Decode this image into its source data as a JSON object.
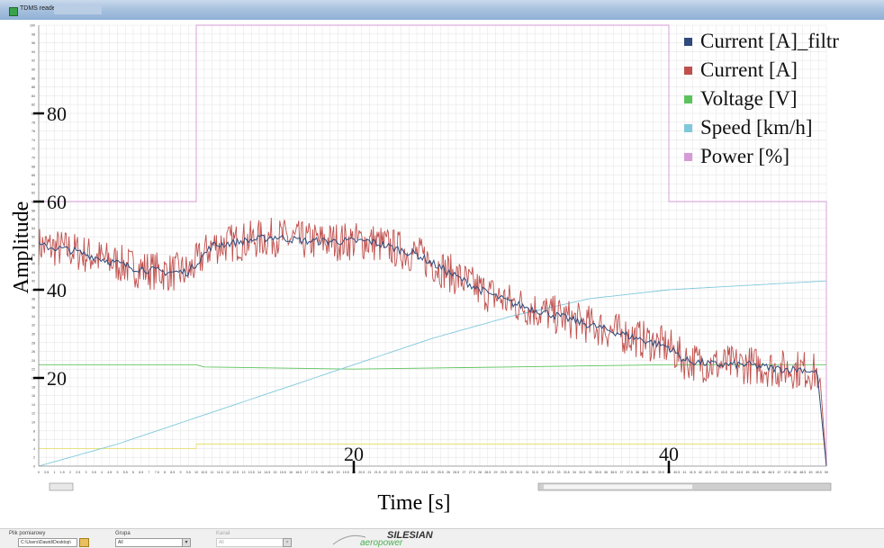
{
  "window": {
    "title": "TDMS reader"
  },
  "colors": {
    "current_filtr": "#2f4b7c",
    "current": "#c0504d",
    "voltage": "#5cc35c",
    "speed": "#7fc8dc",
    "power": "#d69ad6",
    "yellow": "#e8e070",
    "grid": "#e6e6e6"
  },
  "chart_data": {
    "type": "line",
    "xlabel": "Time [s]",
    "ylabel": "Amplitude",
    "xlim": [
      0,
      50
    ],
    "ylim": [
      0,
      100
    ],
    "x_major_ticks": [
      "20",
      "40"
    ],
    "y_major_ticks": [
      "20",
      "40",
      "60",
      "80"
    ],
    "grid": true,
    "legend_position": "top-right",
    "series": [
      {
        "name": "Current [A]_filtr",
        "key": "current_filtr",
        "points": [
          [
            0,
            50
          ],
          [
            2,
            49
          ],
          [
            4,
            47
          ],
          [
            6,
            45
          ],
          [
            8,
            44
          ],
          [
            9.5,
            44
          ],
          [
            10,
            46
          ],
          [
            11,
            50
          ],
          [
            13,
            51
          ],
          [
            15,
            52
          ],
          [
            17,
            51
          ],
          [
            19,
            51
          ],
          [
            21,
            51
          ],
          [
            22,
            50
          ],
          [
            24,
            48
          ],
          [
            26,
            44
          ],
          [
            28,
            40
          ],
          [
            30,
            37
          ],
          [
            32,
            35
          ],
          [
            34,
            33
          ],
          [
            36,
            31
          ],
          [
            38,
            29
          ],
          [
            40,
            27
          ],
          [
            41,
            24
          ],
          [
            43,
            23
          ],
          [
            45,
            23
          ],
          [
            47,
            22
          ],
          [
            48.5,
            22
          ],
          [
            49.5,
            21
          ],
          [
            50,
            0
          ]
        ]
      },
      {
        "name": "Current [A]",
        "key": "current",
        "points": [
          [
            0,
            50
          ],
          [
            2,
            49
          ],
          [
            4,
            47
          ],
          [
            6,
            45
          ],
          [
            8,
            44
          ],
          [
            9.5,
            44
          ],
          [
            10,
            46
          ],
          [
            11,
            50
          ],
          [
            13,
            51
          ],
          [
            15,
            52
          ],
          [
            17,
            51
          ],
          [
            19,
            51
          ],
          [
            21,
            51
          ],
          [
            22,
            50
          ],
          [
            24,
            48
          ],
          [
            26,
            44
          ],
          [
            28,
            40
          ],
          [
            30,
            37
          ],
          [
            32,
            35
          ],
          [
            34,
            33
          ],
          [
            36,
            31
          ],
          [
            38,
            29
          ],
          [
            40,
            27
          ],
          [
            41,
            24
          ],
          [
            43,
            23
          ],
          [
            45,
            23
          ],
          [
            47,
            22
          ],
          [
            48.5,
            22
          ],
          [
            49.5,
            21
          ],
          [
            50,
            0
          ]
        ]
      },
      {
        "name": "Voltage [V]",
        "key": "voltage",
        "points": [
          [
            0,
            23
          ],
          [
            10,
            23
          ],
          [
            10.5,
            22.5
          ],
          [
            20,
            22
          ],
          [
            30,
            22.5
          ],
          [
            40,
            23
          ],
          [
            50,
            23
          ]
        ]
      },
      {
        "name": "Speed [km/h]",
        "key": "speed",
        "points": [
          [
            0,
            0
          ],
          [
            5,
            5
          ],
          [
            10,
            11
          ],
          [
            15,
            17
          ],
          [
            20,
            23
          ],
          [
            25,
            29
          ],
          [
            30,
            34
          ],
          [
            35,
            38
          ],
          [
            40,
            40
          ],
          [
            45,
            41
          ],
          [
            50,
            42
          ]
        ]
      },
      {
        "name": "Power [%]",
        "key": "power",
        "points": [
          [
            0,
            60
          ],
          [
            10,
            60
          ],
          [
            10,
            100
          ],
          [
            40,
            100
          ],
          [
            40,
            60
          ],
          [
            50,
            60
          ],
          [
            50,
            0
          ]
        ]
      },
      {
        "key": "yellow",
        "points": [
          [
            0,
            4
          ],
          [
            10,
            4
          ],
          [
            10,
            5
          ],
          [
            50,
            5
          ]
        ]
      }
    ]
  },
  "bottom": {
    "file_label": "Plik pomiarowy",
    "file_value": "C:\\Users\\Dawid\\Desktop\\",
    "group_label": "Grupa",
    "group_value": "All",
    "channel_label": "Kanał",
    "channel_value": "All"
  },
  "logo": {
    "name": "SILESIAN",
    "sub": "aeropower"
  }
}
